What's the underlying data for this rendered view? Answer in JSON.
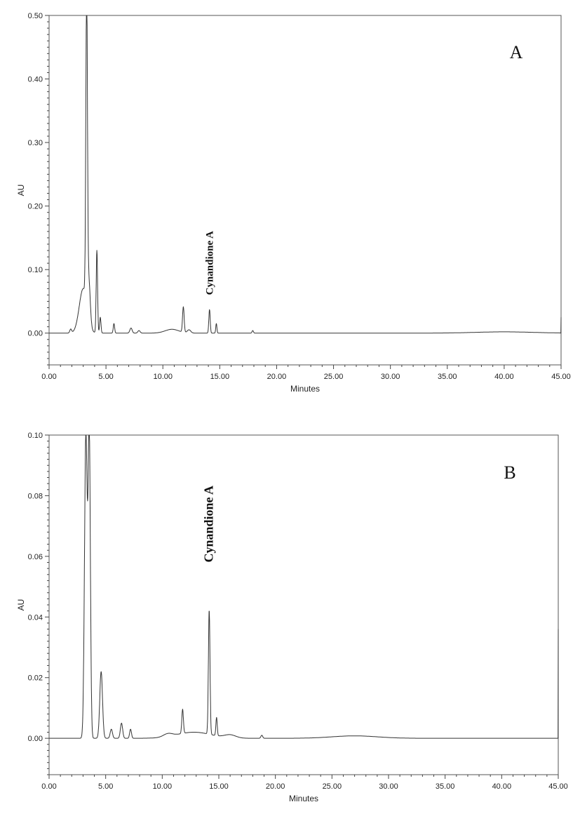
{
  "chart_data": [
    {
      "type": "line",
      "panel_label": "A",
      "xlabel": "Minutes",
      "ylabel": "AU",
      "xlim": [
        0,
        45
      ],
      "ylim": [
        -0.05,
        0.5
      ],
      "x_major_ticks": [
        "0.00",
        "5.00",
        "10.00",
        "15.00",
        "20.00",
        "25.00",
        "30.00",
        "35.00",
        "40.00",
        "45.00"
      ],
      "y_major_ticks": [
        "0.00",
        "0.10",
        "0.20",
        "0.30",
        "0.40",
        "0.50"
      ],
      "y_tick_values": [
        0,
        0.1,
        0.2,
        0.3,
        0.4,
        0.5
      ],
      "baseline": 0.0,
      "end_step": 0.025,
      "peaks": [
        {
          "rt": 1.9,
          "height": 0.006,
          "width": 0.08
        },
        {
          "rt": 3.0,
          "height": 0.07,
          "width": 0.35
        },
        {
          "rt": 3.3,
          "height": 0.49,
          "width": 0.07
        },
        {
          "rt": 3.5,
          "height": 0.06,
          "width": 0.12
        },
        {
          "rt": 4.2,
          "height": 0.13,
          "width": 0.06
        },
        {
          "rt": 4.5,
          "height": 0.025,
          "width": 0.06
        },
        {
          "rt": 5.7,
          "height": 0.015,
          "width": 0.06
        },
        {
          "rt": 7.2,
          "height": 0.008,
          "width": 0.1
        },
        {
          "rt": 7.9,
          "height": 0.004,
          "width": 0.1
        },
        {
          "rt": 10.8,
          "height": 0.006,
          "width": 0.6
        },
        {
          "rt": 11.8,
          "height": 0.04,
          "width": 0.07
        },
        {
          "rt": 12.3,
          "height": 0.005,
          "width": 0.15
        },
        {
          "rt": 14.1,
          "height": 0.037,
          "width": 0.06
        },
        {
          "rt": 14.7,
          "height": 0.015,
          "width": 0.05
        },
        {
          "rt": 17.9,
          "height": 0.004,
          "width": 0.06
        },
        {
          "rt": 40.0,
          "height": 0.002,
          "width": 2.5
        }
      ],
      "annotations": [
        {
          "text": "Cynandione A",
          "rt": 14.1,
          "y": 0.06
        }
      ]
    },
    {
      "type": "line",
      "panel_label": "B",
      "xlabel": "Minutes",
      "ylabel": "AU",
      "xlim": [
        0,
        45
      ],
      "ylim": [
        -0.012,
        0.1
      ],
      "x_major_ticks": [
        "0.00",
        "5.00",
        "10.00",
        "15.00",
        "20.00",
        "25.00",
        "30.00",
        "35.00",
        "40.00",
        "45.00"
      ],
      "y_major_ticks": [
        "0.00",
        "0.02",
        "0.04",
        "0.06",
        "0.08",
        "0.10"
      ],
      "y_tick_values": [
        0,
        0.02,
        0.04,
        0.06,
        0.08,
        0.1
      ],
      "baseline": 0.0,
      "end_step": 0.036,
      "peaks": [
        {
          "rt": 3.25,
          "height": 0.1,
          "width": 0.12
        },
        {
          "rt": 3.55,
          "height": 0.1,
          "width": 0.1
        },
        {
          "rt": 4.6,
          "height": 0.022,
          "width": 0.12
        },
        {
          "rt": 5.5,
          "height": 0.003,
          "width": 0.1
        },
        {
          "rt": 6.4,
          "height": 0.005,
          "width": 0.1
        },
        {
          "rt": 7.2,
          "height": 0.003,
          "width": 0.08
        },
        {
          "rt": 10.5,
          "height": 0.001,
          "width": 0.4
        },
        {
          "rt": 12.8,
          "height": 0.002,
          "width": 1.5
        },
        {
          "rt": 11.8,
          "height": 0.008,
          "width": 0.07
        },
        {
          "rt": 14.15,
          "height": 0.041,
          "width": 0.07
        },
        {
          "rt": 14.8,
          "height": 0.006,
          "width": 0.06
        },
        {
          "rt": 16.0,
          "height": 0.001,
          "width": 0.5
        },
        {
          "rt": 18.8,
          "height": 0.001,
          "width": 0.08
        },
        {
          "rt": 27.0,
          "height": 0.0008,
          "width": 2.0
        }
      ],
      "annotations": [
        {
          "text": "Cynandione A",
          "rt": 14.15,
          "y": 0.058
        }
      ]
    }
  ]
}
